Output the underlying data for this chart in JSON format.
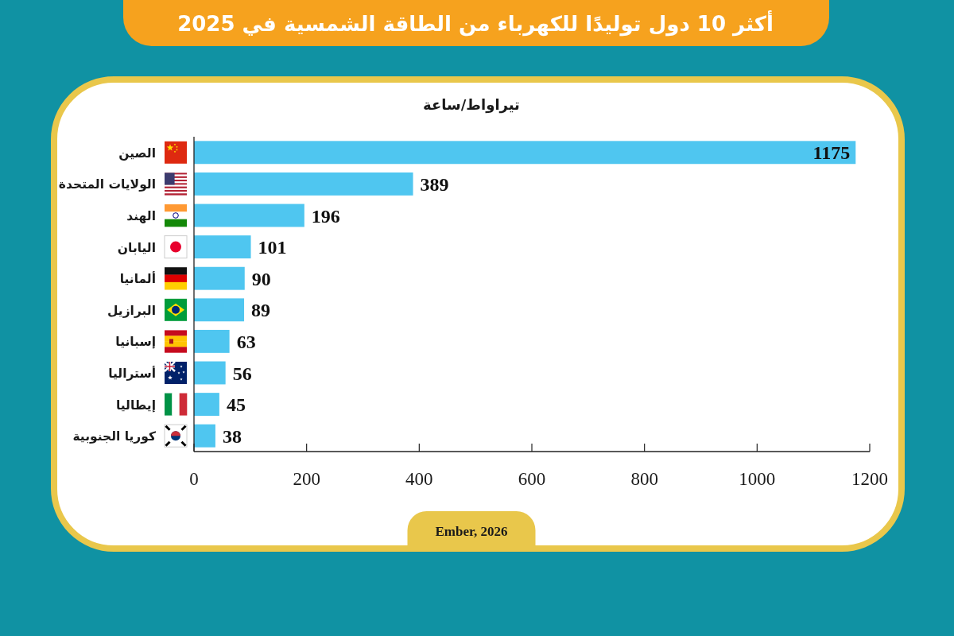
{
  "chart_data": {
    "type": "bar",
    "orientation": "horizontal",
    "title": "أكثر 10 دول توليدًا للكهرباء من الطاقة الشمسية في 2025",
    "subtitle": "تيراواط/ساعة",
    "categories": [
      "الصين",
      "الولايات المتحدة",
      "الهند",
      "اليابان",
      "ألمانيا",
      "البرازيل",
      "إسبانيا",
      "أستراليا",
      "إيطاليا",
      "كوريا الجنوبية"
    ],
    "values": [
      1175,
      389,
      196,
      101,
      90,
      89,
      63,
      56,
      45,
      38
    ],
    "color": "#4fc6f0",
    "xlim": [
      0,
      1200
    ],
    "xticks": [
      0,
      200,
      400,
      600,
      800,
      1000,
      1200
    ],
    "data_labels": true,
    "annotations": [
      "Ember, 2026"
    ]
  }
}
